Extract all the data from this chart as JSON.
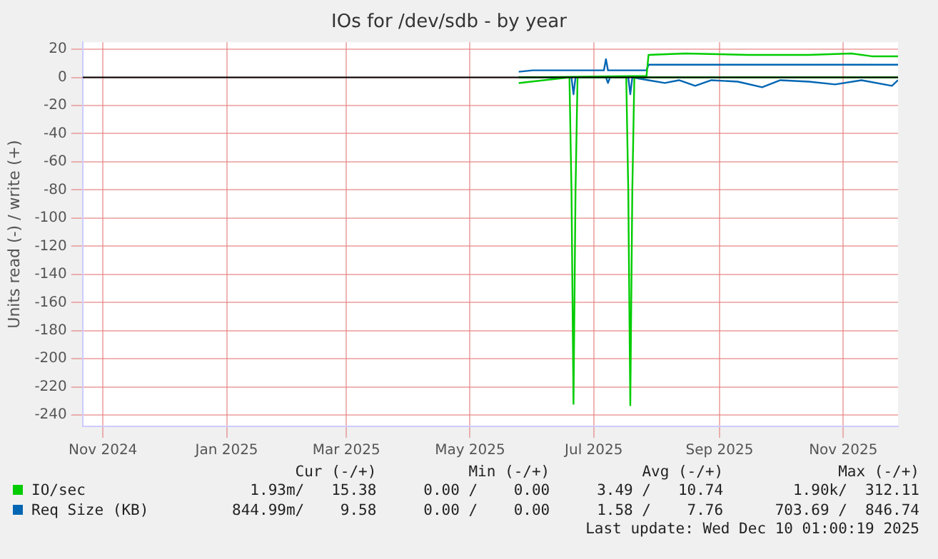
{
  "chart_data": {
    "type": "line",
    "title": "IOs for /dev/sdb - by year",
    "ylabel": "Units read (-) / write (+)",
    "xlim": [
      "2024-10-22",
      "2025-11-28"
    ],
    "xticks": [
      {
        "value": "2024-11-01",
        "label": "Nov 2024"
      },
      {
        "value": "2025-01-01",
        "label": "Jan 2025"
      },
      {
        "value": "2025-03-01",
        "label": "Mar 2025"
      },
      {
        "value": "2025-05-01",
        "label": "May 2025"
      },
      {
        "value": "2025-07-01",
        "label": "Jul 2025"
      },
      {
        "value": "2025-09-01",
        "label": "Sep 2025"
      },
      {
        "value": "2025-11-01",
        "label": "Nov 2025"
      }
    ],
    "ylim": [
      -248,
      25
    ],
    "yticks": [
      20,
      0,
      -20,
      -40,
      -60,
      -80,
      -100,
      -120,
      -140,
      -160,
      -180,
      -200,
      -220,
      -240
    ],
    "grid": true,
    "legend": "bottom",
    "marker": "none",
    "line_style": "solid",
    "ref_lines": [
      {
        "axis": "y",
        "value": 0,
        "color": "#000000"
      }
    ],
    "series": [
      {
        "name": "IO/sec",
        "color": "#00cc00",
        "x": [
          "2025-05-25",
          "2025-07-27",
          "2025-07-28",
          "2025-08-15",
          "2025-09-15",
          "2025-10-15",
          "2025-11-05",
          "2025-11-15",
          "2025-11-28"
        ],
        "values": [
          0,
          1,
          16,
          17,
          16,
          16,
          17,
          15,
          15
        ]
      },
      {
        "color": "#00cc00",
        "x": [
          "2025-05-25",
          "2025-06-19",
          "2025-06-20",
          "2025-06-21",
          "2025-06-22",
          "2025-06-23",
          "2025-07-17",
          "2025-07-18",
          "2025-07-19",
          "2025-07-20",
          "2025-07-21",
          "2025-11-28"
        ],
        "values": [
          -4,
          0,
          -80,
          -232,
          -80,
          0,
          0,
          -80,
          -233,
          -80,
          0,
          0
        ]
      },
      {
        "name": "Req Size (KB)",
        "color": "#0066b3",
        "x": [
          "2025-05-25",
          "2025-06-01",
          "2025-06-20",
          "2025-07-06",
          "2025-07-07",
          "2025-07-08",
          "2025-07-27",
          "2025-07-28",
          "2025-11-28"
        ],
        "values": [
          4,
          5,
          5,
          5,
          13,
          5,
          5,
          9,
          9
        ]
      },
      {
        "color": "#0066b3",
        "x": [
          "2025-05-25",
          "2025-06-20",
          "2025-06-21",
          "2025-06-22",
          "2025-07-07",
          "2025-07-08",
          "2025-07-09",
          "2025-07-18",
          "2025-07-19",
          "2025-07-20",
          "2025-07-28",
          "2025-08-05",
          "2025-08-12",
          "2025-08-20",
          "2025-08-28",
          "2025-09-10",
          "2025-09-22",
          "2025-10-01",
          "2025-10-15",
          "2025-10-28",
          "2025-11-10",
          "2025-11-25",
          "2025-11-28"
        ],
        "values": [
          0,
          0,
          -12,
          0,
          0,
          -4,
          0,
          0,
          -12,
          0,
          -2,
          -4,
          -2,
          -6,
          -2,
          -3,
          -7,
          -2,
          -3,
          -5,
          -2,
          -6,
          -2
        ]
      }
    ],
    "annotations": [
      "Cur (-/+)",
      "Min (-/+)",
      "Avg (-/+)",
      "Max (-/+)",
      "1.93m/   15.38",
      "0.00 /    0.00",
      "3.49 /   10.74",
      "1.90k/  312.11",
      "844.99m/    9.58",
      "0.00 /    0.00",
      "1.58 /    7.76",
      "703.69 /  846.74",
      "Last update: Wed Dec 10 01:00:19 2025"
    ]
  }
}
